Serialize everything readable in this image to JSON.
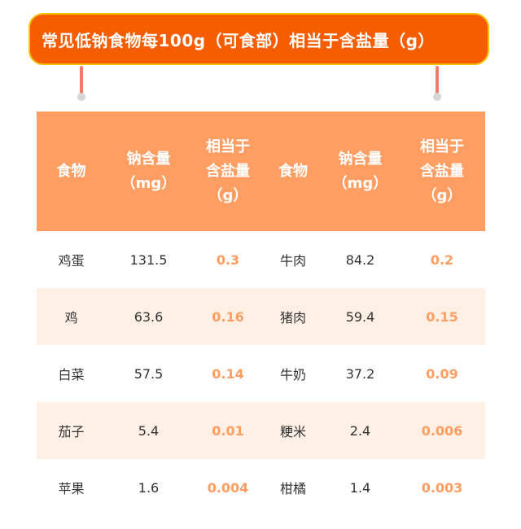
{
  "title": "常见低钠食物每100g（可食部）相当于含盐量（g）",
  "colors": {
    "title_bg": "#f55d00",
    "title_border": "#f7c200",
    "header_bg": "#ff9e63",
    "alt_row": "#fff0e6",
    "salt_text": "#ff9e63"
  },
  "chart_data": {
    "type": "table",
    "headers": [
      {
        "l1": "",
        "l2": "食物",
        "l3": ""
      },
      {
        "l1": "钠含量",
        "l2": "（mg）",
        "l3": ""
      },
      {
        "l1": "相当于",
        "l2": "含盐量",
        "l3": "（g）"
      },
      {
        "l1": "",
        "l2": "食物",
        "l3": ""
      },
      {
        "l1": "钠含量",
        "l2": "（mg）",
        "l3": ""
      },
      {
        "l1": "相当于",
        "l2": "含盐量",
        "l3": "（g）"
      }
    ],
    "rows": [
      [
        "鸡蛋",
        "131.5",
        "0.3",
        "牛肉",
        "84.2",
        "0.2"
      ],
      [
        "鸡",
        "63.6",
        "0.16",
        "猪肉",
        "59.4",
        "0.15"
      ],
      [
        "白菜",
        "57.5",
        "0.14",
        "牛奶",
        "37.2",
        "0.09"
      ],
      [
        "茄子",
        "5.4",
        "0.01",
        "粳米",
        "2.4",
        "0.006"
      ],
      [
        "苹果",
        "1.6",
        "0.004",
        "柑橘",
        "1.4",
        "0.003"
      ]
    ]
  }
}
